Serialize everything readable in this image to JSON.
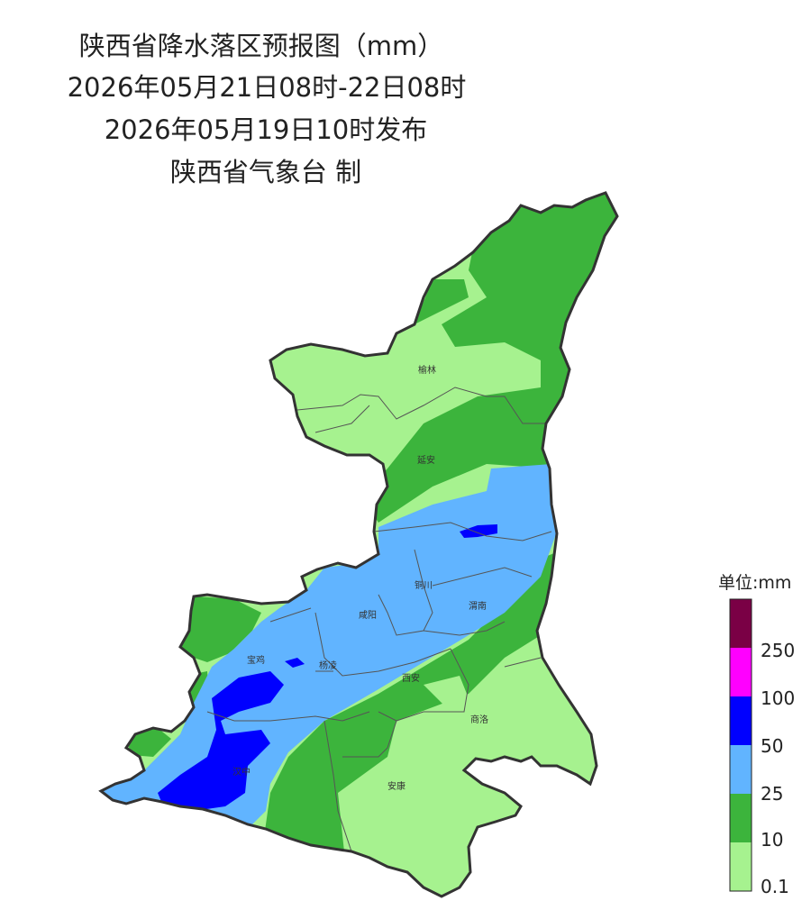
{
  "title": {
    "line1": "陕西省降水落区预报图（mm）",
    "line2": "2026年05月21日08时-22日08时",
    "line3": "2026年05月19日10时发布",
    "line4": "陕西省气象台 制"
  },
  "cities": {
    "yulin": "榆林",
    "yanan": "延安",
    "tongchuan": "铜川",
    "xianyang": "咸阳",
    "weinan": "渭南",
    "baoji": "宝鸡",
    "yangling": "杨凌",
    "xian": "西安",
    "shangluo": "商洛",
    "hanzhong": "汉中",
    "ankang": "安康"
  },
  "legend": {
    "title": "单位:mm",
    "labels": [
      "250",
      "100",
      "50",
      "25",
      "10",
      "0.1"
    ],
    "colors": {
      "c250": "#7a0045",
      "c100": "#ff00ff",
      "c50": "#0000ff",
      "c25": "#61b4ff",
      "c10": "#3cb43c",
      "c01": "#a6f28f"
    }
  }
}
